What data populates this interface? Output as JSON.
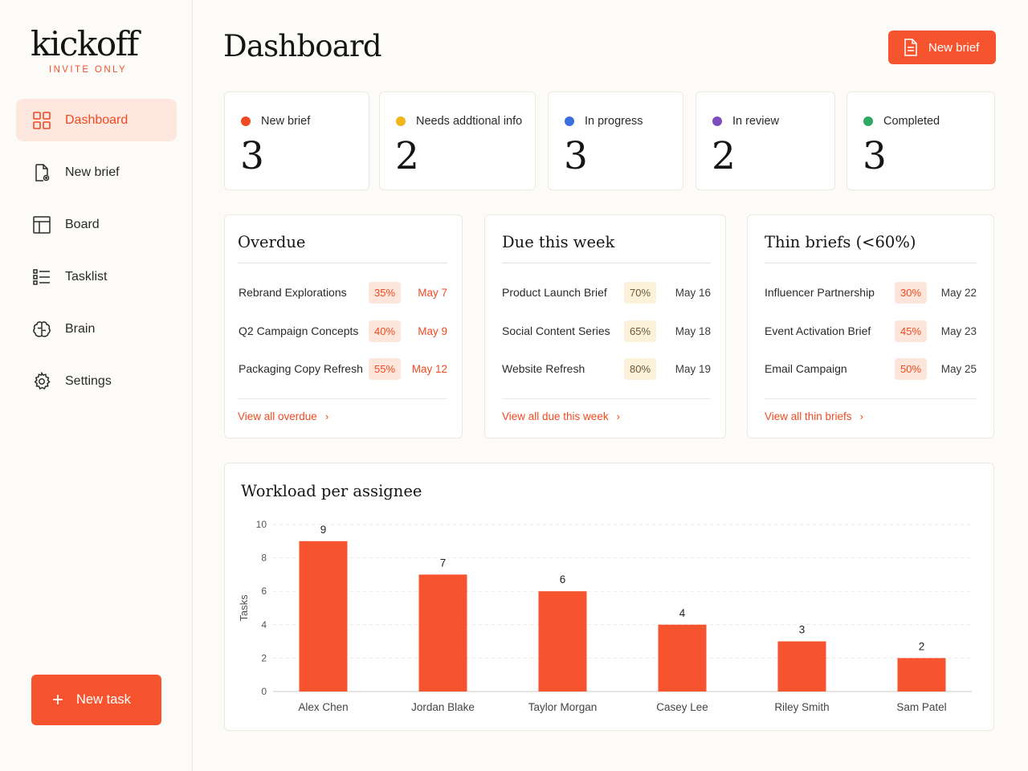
{
  "brand": {
    "name": "kickoff",
    "tagline": "INVITE ONLY",
    "accent": "#f6532f"
  },
  "sidebar": {
    "items": [
      {
        "label": "Dashboard",
        "icon": "grid-icon",
        "active": true
      },
      {
        "label": "New brief",
        "icon": "file-plus-icon"
      },
      {
        "label": "Board",
        "icon": "board-icon"
      },
      {
        "label": "Tasklist",
        "icon": "list-icon"
      },
      {
        "label": "Brain",
        "icon": "brain-icon"
      },
      {
        "label": "Settings",
        "icon": "gear-icon"
      }
    ],
    "new_task_label": "New task"
  },
  "header": {
    "title": "Dashboard",
    "new_brief_label": "New brief"
  },
  "stats": [
    {
      "label": "New brief",
      "value": "3",
      "color": "#ef4b22"
    },
    {
      "label": "Needs addtional info",
      "value": "2",
      "color": "#f1b61a"
    },
    {
      "label": "In progress",
      "value": "3",
      "color": "#3b6fe0"
    },
    {
      "label": "In review",
      "value": "2",
      "color": "#7d4cc0"
    },
    {
      "label": "Completed",
      "value": "3",
      "color": "#2ea864"
    }
  ],
  "lists": [
    {
      "title": "Overdue",
      "rows": [
        {
          "name": "Rebrand Explorations",
          "pct": "35%",
          "date": "May 7"
        },
        {
          "name": "Q2 Campaign Concepts",
          "pct": "40%",
          "date": "May 9"
        },
        {
          "name": "Packaging Copy Refresh",
          "pct": "55%",
          "date": "May 12"
        }
      ],
      "link": "View all overdue"
    },
    {
      "title": "Due this week",
      "rows": [
        {
          "name": "Product Launch Brief",
          "pct": "70%",
          "date": "May 16"
        },
        {
          "name": "Social Content Series",
          "pct": "65%",
          "date": "May 18"
        },
        {
          "name": "Website Refresh",
          "pct": "80%",
          "date": "May 19"
        }
      ],
      "link": "View all due this week"
    },
    {
      "title": "Thin briefs (<60%)",
      "rows": [
        {
          "name": "Influencer Partnership",
          "pct": "30%",
          "date": "May 22"
        },
        {
          "name": "Event Activation Brief",
          "pct": "45%",
          "date": "May 23"
        },
        {
          "name": "Email Campaign",
          "pct": "50%",
          "date": "May 25"
        }
      ],
      "link": "View all thin briefs"
    }
  ],
  "chart_data": {
    "type": "bar",
    "title": "Workload per assignee",
    "ylabel": "Tasks",
    "xlabel": "",
    "categories": [
      "Alex Chen",
      "Jordan Blake",
      "Taylor Morgan",
      "Casey Lee",
      "Riley Smith",
      "Sam Patel"
    ],
    "values": [
      9,
      7,
      6,
      4,
      3,
      2
    ],
    "ylim": [
      0,
      10
    ],
    "yticks": [
      0,
      2,
      4,
      6,
      8,
      10
    ],
    "grid": true,
    "bar_color": "#f6532f"
  }
}
